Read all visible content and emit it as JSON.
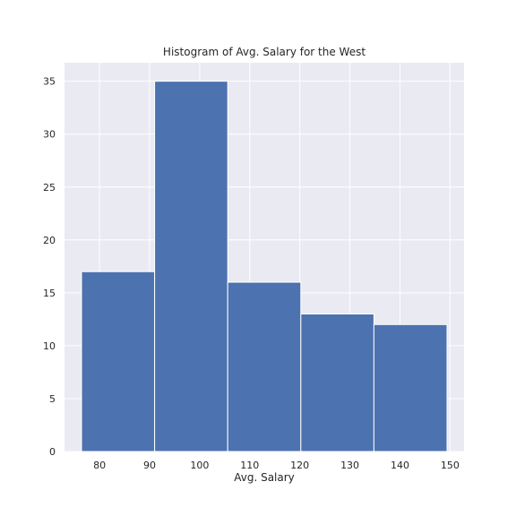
{
  "chart_data": {
    "type": "bar",
    "title": "Histogram of Avg. Salary for the West",
    "xlabel": "Avg. Salary",
    "ylabel": "",
    "bins": [
      {
        "start": 76.4,
        "end": 91.0,
        "count": 17
      },
      {
        "start": 91.0,
        "end": 105.6,
        "count": 35
      },
      {
        "start": 105.6,
        "end": 120.2,
        "count": 16
      },
      {
        "start": 120.2,
        "end": 134.8,
        "count": 13
      },
      {
        "start": 134.8,
        "end": 149.4,
        "count": 12
      }
    ],
    "xlim": [
      73.0,
      152.8
    ],
    "ylim": [
      0,
      36.75
    ],
    "xticks": [
      80,
      90,
      100,
      110,
      120,
      130,
      140,
      150
    ],
    "yticks": [
      0,
      5,
      10,
      15,
      20,
      25,
      30,
      35
    ],
    "grid": true,
    "colors": {
      "bar": "#4c72b0",
      "plot_background": "#eaeaf2",
      "grid": "#ffffff"
    }
  }
}
